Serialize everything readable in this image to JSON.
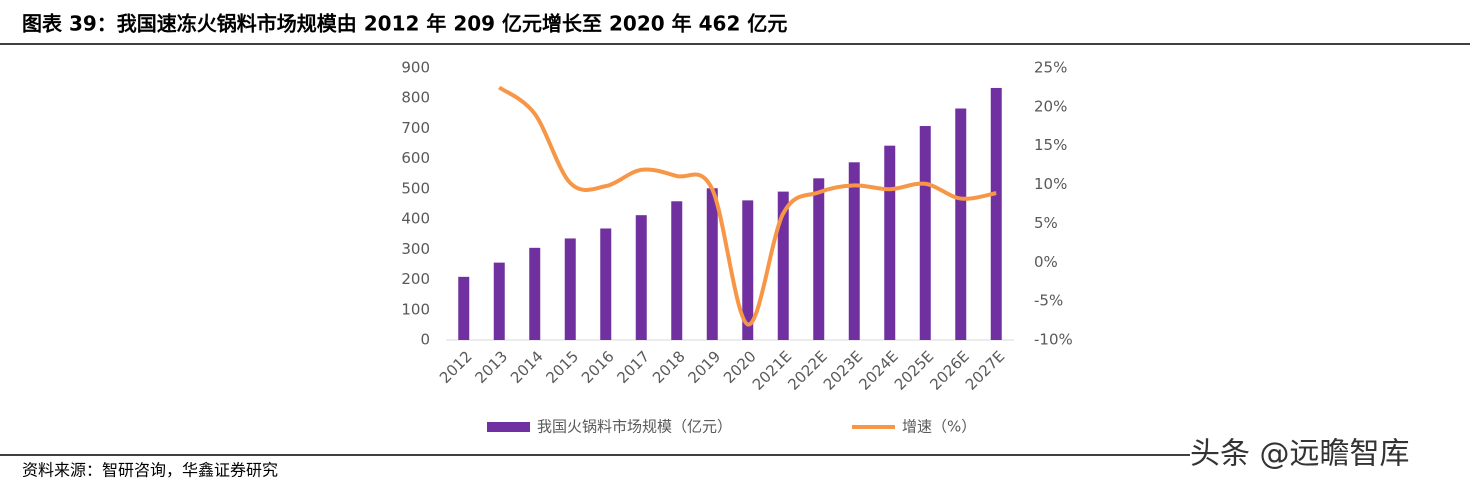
{
  "chart_data": {
    "type": "bar-line",
    "title": "图表 39：我国速冻火锅料市场规模由 2012 年 209 亿元增长至 2020 年 462 亿元",
    "source": "资料来源：智研咨询，华鑫证券研究",
    "watermark": "头条 @远瞻智库",
    "categories": [
      "2012",
      "2013",
      "2014",
      "2015",
      "2016",
      "2017",
      "2018",
      "2019",
      "2020",
      "2021E",
      "2022E",
      "2023E",
      "2024E",
      "2025E",
      "2026E",
      "2027E"
    ],
    "series": [
      {
        "name": "我国火锅料市场规模（亿元）",
        "type": "bar",
        "color": "#7030a0",
        "values": [
          209,
          256,
          305,
          336,
          369,
          413,
          459,
          502,
          462,
          491,
          535,
          588,
          643,
          708,
          766,
          834
        ]
      },
      {
        "name": "增速（%）",
        "type": "line",
        "axis": "y2",
        "color": "#f79646",
        "values": [
          null,
          22.5,
          19.1,
          10.2,
          9.8,
          11.9,
          11.1,
          9.4,
          -8.0,
          6.3,
          9.0,
          9.9,
          9.4,
          10.1,
          8.2,
          8.9
        ]
      }
    ],
    "ylim": [
      0,
      900
    ],
    "yticks": [
      0,
      100,
      200,
      300,
      400,
      500,
      600,
      700,
      800,
      900
    ],
    "y2lim": [
      -10,
      25
    ],
    "y2ticks": [
      {
        "value": -10,
        "label": "-10%"
      },
      {
        "value": -5,
        "label": "-5%"
      },
      {
        "value": 0,
        "label": "0%"
      },
      {
        "value": 5,
        "label": "5%"
      },
      {
        "value": 10,
        "label": "10%"
      },
      {
        "value": 15,
        "label": "15%"
      },
      {
        "value": 20,
        "label": "20%"
      },
      {
        "value": 25,
        "label": "25%"
      }
    ]
  }
}
